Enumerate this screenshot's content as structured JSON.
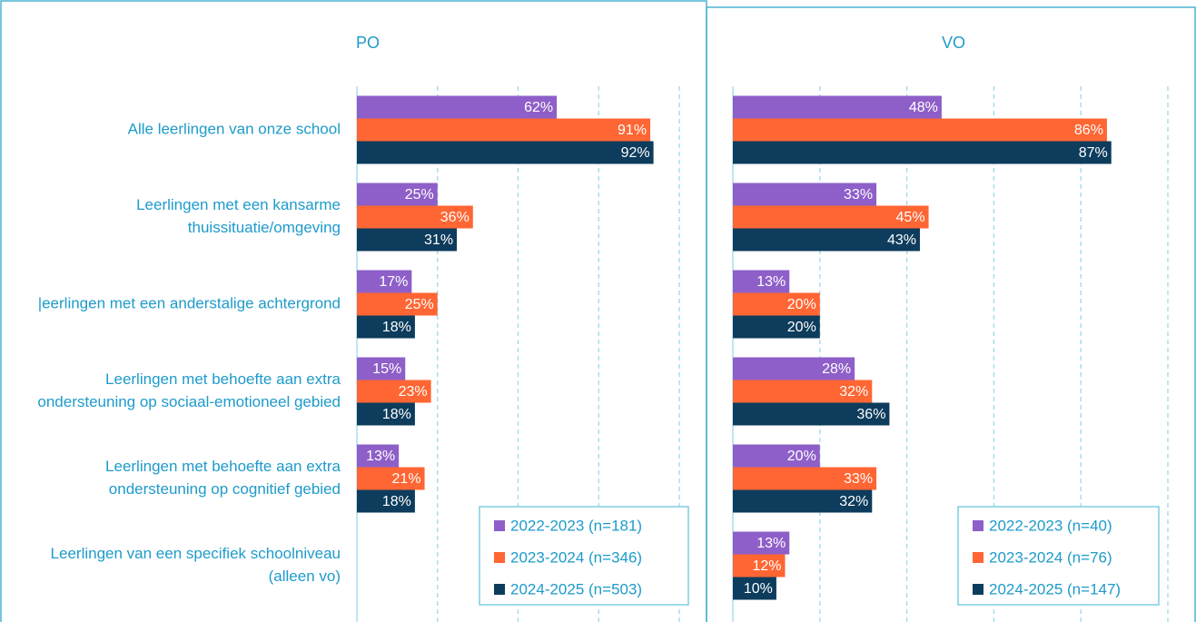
{
  "chart_data": [
    {
      "type": "hbar",
      "title": "PO",
      "categories": [
        "Alle leerlingen van onze school",
        "Leerlingen met een kansarme thuissituatie/omgeving",
        "|eerlingen met een anderstalige achtergrond",
        "Leerlingen met behoefte aan extra ondersteuning op sociaal-emotioneel gebied",
        "Leerlingen met behoefte aan extra ondersteuning op cognitief gebied",
        "Leerlingen van een specifiek schoolniveau (alleen vo)"
      ],
      "xlim": [
        0,
        100
      ],
      "xticks": [
        0,
        25,
        50,
        75,
        100
      ],
      "grid": true,
      "legend": "lower right",
      "series": [
        {
          "name": "2022-2023 (n=181)",
          "color": "#8e5fc8",
          "values": [
            62,
            25,
            17,
            15,
            13,
            null
          ],
          "value_labels": [
            "62%",
            "25%",
            "17%",
            "15%",
            "13%",
            null
          ]
        },
        {
          "name": "2023-2024 (n=346)",
          "color": "#ff6633",
          "values": [
            91,
            36,
            25,
            23,
            21,
            null
          ],
          "value_labels": [
            "91%",
            "36%",
            "25%",
            "23%",
            "21%",
            null
          ]
        },
        {
          "name": "2024-2025 (n=503)",
          "color": "#0d3c5c",
          "values": [
            92,
            31,
            18,
            18,
            18,
            null
          ],
          "value_labels": [
            "92%",
            "31%",
            "18%",
            "18%",
            "18%",
            null
          ]
        }
      ]
    },
    {
      "type": "hbar",
      "title": "VO",
      "xlim": [
        0,
        100
      ],
      "xticks": [
        0,
        20,
        40,
        60,
        80,
        100
      ],
      "grid": true,
      "legend": "lower right",
      "series": [
        {
          "name": "2022-2023 (n=40)",
          "color": "#8e5fc8",
          "values": [
            48,
            33,
            13,
            28,
            20,
            13
          ],
          "value_labels": [
            "48%",
            "33%",
            "13%",
            "28%",
            "20%",
            "13%"
          ]
        },
        {
          "name": "2023-2024 (n=76)",
          "color": "#ff6633",
          "values": [
            86,
            45,
            20,
            32,
            33,
            12
          ],
          "value_labels": [
            "86%",
            "45%",
            "20%",
            "32%",
            "33%",
            "12%"
          ]
        },
        {
          "name": "2024-2025 (n=147)",
          "color": "#0d3c5c",
          "values": [
            87,
            43,
            20,
            36,
            32,
            10
          ],
          "value_labels": [
            "87%",
            "43%",
            "20%",
            "36%",
            "32%",
            "10%"
          ]
        }
      ]
    }
  ]
}
